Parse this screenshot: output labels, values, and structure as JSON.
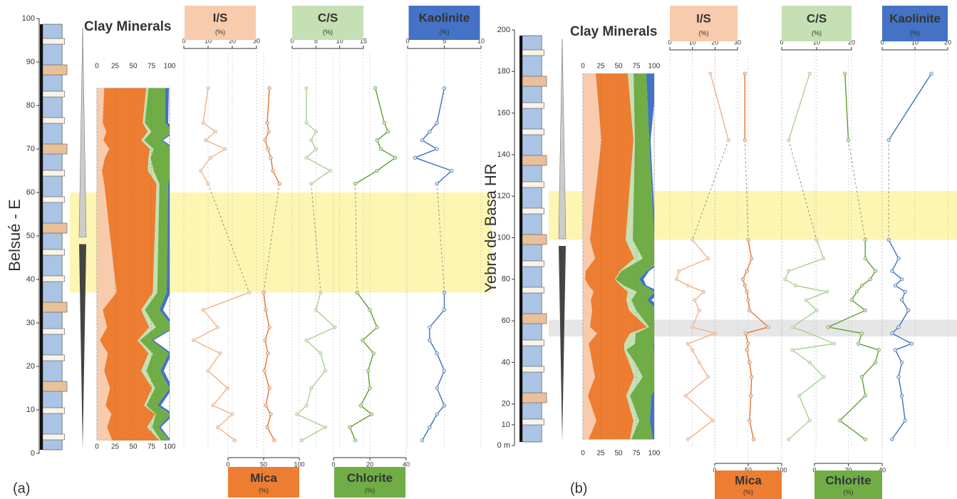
{
  "chart_data": [
    {
      "type": "clay-profile",
      "panel_label": "(a)",
      "title": "Clay Minerals",
      "ylabel": "Belsué - E",
      "ylim": [
        0,
        100
      ],
      "yticks": [
        0,
        10,
        20,
        30,
        40,
        50,
        60,
        70,
        80,
        90,
        100
      ],
      "bands": [
        {
          "range": [
            37,
            60
          ],
          "color": "#fdf6b2"
        }
      ],
      "depths": [
        84,
        76,
        74,
        72,
        70,
        68,
        65,
        62,
        37,
        33,
        29,
        26,
        23,
        19,
        15,
        11,
        9,
        6,
        3
      ],
      "stack_xlim": [
        0,
        100
      ],
      "stack_xticks": [
        0,
        25,
        50,
        75,
        100
      ],
      "series": [
        {
          "name": "I/S",
          "unit": "(%)",
          "color": "#f4b183",
          "box_color": "#f8cbad",
          "area_color": "#f8cbad",
          "xlim": [
            0,
            30
          ],
          "xticks": [
            0,
            10,
            20,
            30
          ],
          "values": [
            10,
            8,
            13,
            9,
            17,
            11,
            7,
            10,
            27,
            8,
            14,
            4,
            15,
            10,
            18,
            12,
            20,
            14,
            21
          ]
        },
        {
          "name": "Mica",
          "unit": "(%)",
          "color": "#e8742a",
          "box_color": "#ed7d31",
          "area_color": "#ed7d31",
          "xlim": [
            0,
            100
          ],
          "xticks": [
            0,
            50,
            100
          ],
          "values": [
            58,
            55,
            57,
            52,
            56,
            60,
            63,
            72,
            50,
            53,
            58,
            52,
            56,
            51,
            58,
            53,
            60,
            55,
            65
          ]
        },
        {
          "name": "C/S",
          "unit": "(%)",
          "color": "#a9d18e",
          "box_color": "#c5e0b4",
          "area_color": "#c5e0b4",
          "xlim": [
            0,
            15
          ],
          "xticks": [
            0,
            5,
            10,
            15
          ],
          "values": [
            3,
            3,
            5,
            4,
            5,
            3,
            8,
            4,
            6,
            5,
            9,
            3,
            6,
            7,
            4,
            3,
            1,
            7,
            2
          ]
        },
        {
          "name": "Chlorite",
          "unit": "(%)",
          "color": "#5fa032",
          "box_color": "#70ad47",
          "area_color": "#70ad47",
          "xlim": [
            0,
            40
          ],
          "xticks": [
            0,
            20,
            40
          ],
          "values": [
            23,
            28,
            30,
            24,
            26,
            34,
            24,
            12,
            13,
            20,
            24,
            16,
            22,
            19,
            20,
            15,
            21,
            9,
            12
          ]
        },
        {
          "name": "Kaolinite",
          "unit": "(%)",
          "color": "#3a6fc4",
          "box_color": "#4472c4",
          "area_color": "#4472c4",
          "xlim": [
            0,
            10
          ],
          "xticks": [
            0,
            5,
            10
          ],
          "values": [
            5,
            4,
            3,
            2,
            4,
            1,
            6,
            4,
            5,
            5,
            3,
            3,
            4,
            5,
            4,
            5,
            4,
            3,
            2
          ]
        }
      ]
    },
    {
      "type": "clay-profile",
      "panel_label": "(b)",
      "title": "Clay Minerals",
      "ylabel": "Yebra de  Basa HR",
      "ylim": [
        0,
        200
      ],
      "yticks": [
        {
          "value": 0,
          "label": "0 m"
        },
        10,
        20,
        40,
        60,
        80,
        100,
        120,
        140,
        160,
        180,
        200
      ],
      "bands": [
        {
          "range": [
            99,
            122.5
          ],
          "color": "#fdf6b2"
        },
        {
          "range": [
            52.5,
            60.5
          ],
          "color": "#e6e6e6"
        }
      ],
      "depths": [
        179,
        147,
        99,
        90,
        84,
        80,
        77,
        74,
        70,
        65,
        57,
        54,
        49,
        46,
        40,
        33,
        24,
        12,
        3
      ],
      "stack_xlim": [
        0,
        100
      ],
      "stack_xticks": [
        0,
        25,
        50,
        75,
        100
      ],
      "series": [
        {
          "name": "I/S",
          "unit": "(%)",
          "color": "#f4b183",
          "box_color": "#f8cbad",
          "area_color": "#f8cbad",
          "xlim": [
            0,
            30
          ],
          "xticks": [
            0,
            10,
            20,
            30
          ],
          "values": [
            18,
            26,
            10,
            17,
            4,
            3,
            8,
            15,
            11,
            13,
            10,
            20,
            8,
            10,
            13,
            17,
            7,
            19,
            8
          ]
        },
        {
          "name": "Mica",
          "unit": "(%)",
          "color": "#e8742a",
          "box_color": "#ed7d31",
          "area_color": "#ed7d31",
          "xlim": [
            0,
            100
          ],
          "xticks": [
            0,
            50,
            100
          ],
          "values": [
            45,
            45,
            50,
            55,
            48,
            42,
            45,
            48,
            50,
            52,
            80,
            46,
            50,
            48,
            52,
            55,
            54,
            52,
            58
          ]
        },
        {
          "name": "C/S",
          "unit": "(%)",
          "color": "#a9d18e",
          "box_color": "#c5e0b4",
          "area_color": "#c5e0b4",
          "xlim": [
            0,
            20
          ],
          "xticks": [
            0,
            10,
            20
          ],
          "values": [
            8,
            2,
            10,
            12,
            2,
            1,
            4,
            13,
            7,
            10,
            3,
            8,
            15,
            3,
            8,
            12,
            5,
            8,
            2
          ]
        },
        {
          "name": "Chlorite",
          "unit": "(%)",
          "color": "#5fa032",
          "box_color": "#70ad47",
          "area_color": "#70ad47",
          "xlim": [
            0,
            40
          ],
          "xticks": [
            0,
            20,
            40
          ],
          "values": [
            18,
            20,
            30,
            30,
            36,
            33,
            28,
            25,
            22,
            30,
            8,
            28,
            26,
            38,
            36,
            28,
            30,
            15,
            30
          ]
        },
        {
          "name": "Kaolinite",
          "unit": "(%)",
          "color": "#3a6fc4",
          "box_color": "#4472c4",
          "area_color": "#4472c4",
          "xlim": [
            0,
            20
          ],
          "xticks": [
            0,
            10,
            20
          ],
          "values": [
            15,
            2,
            2,
            5,
            3,
            6,
            4,
            7,
            6,
            8,
            5,
            3,
            9,
            4,
            6,
            5,
            6,
            7,
            3
          ]
        }
      ]
    }
  ]
}
